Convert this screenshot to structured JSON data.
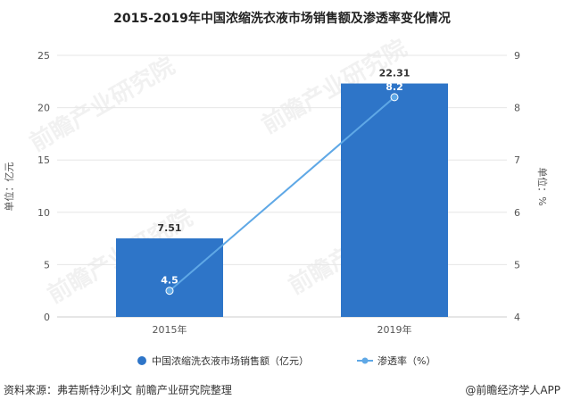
{
  "chart_data": {
    "type": "bar+line",
    "title": "2015-2019年中国浓缩洗衣液市场销售额及渗透率变化情况",
    "categories": [
      "2015年",
      "2019年"
    ],
    "series": [
      {
        "name": "中国浓缩洗衣液市场销售额（亿元）",
        "type": "bar",
        "axis": "left",
        "values": [
          7.51,
          22.31
        ],
        "labels": [
          "7.51",
          "22.31"
        ],
        "color": "#2e75c8"
      },
      {
        "name": "渗透率（%）",
        "type": "line",
        "axis": "right",
        "values": [
          4.5,
          8.2
        ],
        "labels": [
          "4.5",
          "8.2"
        ],
        "color": "#5fa8e6"
      }
    ],
    "ylabel_left": "单位：亿元",
    "ylabel_right": "单位：%",
    "ylim_left": [
      0,
      25
    ],
    "yticks_left": [
      "0",
      "5",
      "10",
      "15",
      "20",
      "25"
    ],
    "ylim_right": [
      4,
      9
    ],
    "yticks_right": [
      "4",
      "5",
      "6",
      "7",
      "8",
      "9"
    ],
    "grid": true,
    "legend_position": "bottom"
  },
  "footer": {
    "source": "资料来源：弗若斯特沙利文 前瞻产业研究院整理",
    "brand": "@前瞻经济学人APP"
  }
}
